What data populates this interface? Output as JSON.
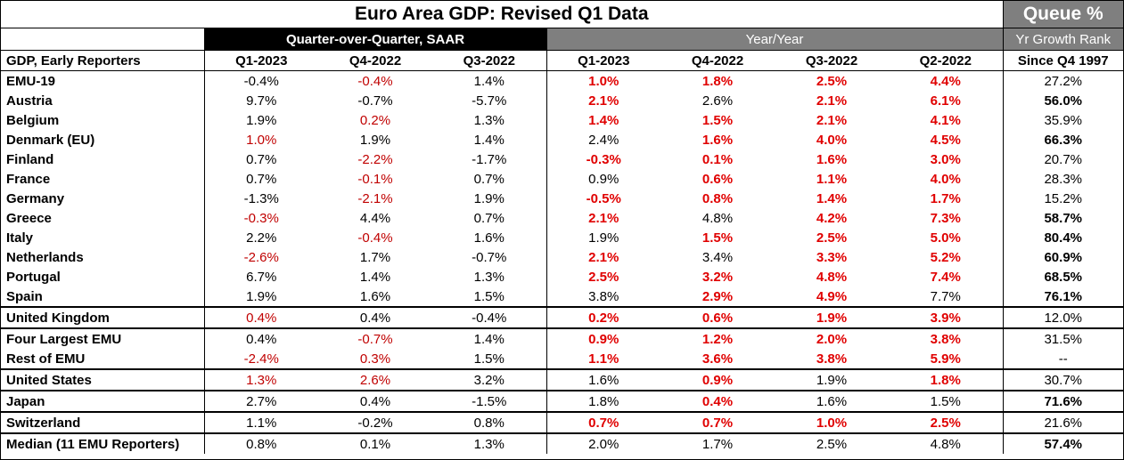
{
  "title": "Euro Area GDP: Revised Q1 Data",
  "queue_label": "Queue %",
  "groups": {
    "qoq": "Quarter-over-Quarter, SAAR",
    "yoy": "Year/Year",
    "rank": "Yr Growth Rank"
  },
  "headers": [
    "GDP, Early Reporters",
    "Q1-2023",
    "Q4-2022",
    "Q3-2022",
    "Q1-2023",
    "Q4-2022",
    "Q3-2022",
    "Q2-2022",
    "Since Q4 1997"
  ],
  "colors": {
    "negative_red": "#c00000",
    "highlight_red": "#e00000",
    "gray": "#7f7f7f"
  },
  "rows": [
    {
      "name": "EMU-19",
      "v": [
        "-0.4%",
        "-0.4%",
        "1.4%",
        "1.0%",
        "1.8%",
        "2.5%",
        "4.4%",
        "27.2%"
      ],
      "s": [
        "n",
        "r",
        "n",
        "rb",
        "rb",
        "rb",
        "rb",
        "n"
      ]
    },
    {
      "name": "Austria",
      "v": [
        "9.7%",
        "-0.7%",
        "-5.7%",
        "2.1%",
        "2.6%",
        "2.1%",
        "6.1%",
        "56.0%"
      ],
      "s": [
        "n",
        "n",
        "n",
        "rb",
        "n",
        "rb",
        "rb",
        "b"
      ]
    },
    {
      "name": "Belgium",
      "v": [
        "1.9%",
        "0.2%",
        "1.3%",
        "1.4%",
        "1.5%",
        "2.1%",
        "4.1%",
        "35.9%"
      ],
      "s": [
        "n",
        "r",
        "n",
        "rb",
        "rb",
        "rb",
        "rb",
        "n"
      ]
    },
    {
      "name": "Denmark (EU)",
      "v": [
        "1.0%",
        "1.9%",
        "1.4%",
        "2.4%",
        "1.6%",
        "4.0%",
        "4.5%",
        "66.3%"
      ],
      "s": [
        "r",
        "n",
        "n",
        "n",
        "rb",
        "rb",
        "rb",
        "b"
      ]
    },
    {
      "name": "Finland",
      "v": [
        "0.7%",
        "-2.2%",
        "-1.7%",
        "-0.3%",
        "0.1%",
        "1.6%",
        "3.0%",
        "20.7%"
      ],
      "s": [
        "n",
        "r",
        "n",
        "rb",
        "rb",
        "rb",
        "rb",
        "n"
      ]
    },
    {
      "name": "France",
      "v": [
        "0.7%",
        "-0.1%",
        "0.7%",
        "0.9%",
        "0.6%",
        "1.1%",
        "4.0%",
        "28.3%"
      ],
      "s": [
        "n",
        "r",
        "n",
        "n",
        "rb",
        "rb",
        "rb",
        "n"
      ]
    },
    {
      "name": "Germany",
      "v": [
        "-1.3%",
        "-2.1%",
        "1.9%",
        "-0.5%",
        "0.8%",
        "1.4%",
        "1.7%",
        "15.2%"
      ],
      "s": [
        "n",
        "r",
        "n",
        "rb",
        "rb",
        "rb",
        "rb",
        "n"
      ]
    },
    {
      "name": "Greece",
      "v": [
        "-0.3%",
        "4.4%",
        "0.7%",
        "2.1%",
        "4.8%",
        "4.2%",
        "7.3%",
        "58.7%"
      ],
      "s": [
        "r",
        "n",
        "n",
        "rb",
        "n",
        "rb",
        "rb",
        "b"
      ]
    },
    {
      "name": "Italy",
      "v": [
        "2.2%",
        "-0.4%",
        "1.6%",
        "1.9%",
        "1.5%",
        "2.5%",
        "5.0%",
        "80.4%"
      ],
      "s": [
        "n",
        "r",
        "n",
        "n",
        "rb",
        "rb",
        "rb",
        "b"
      ]
    },
    {
      "name": "Netherlands",
      "v": [
        "-2.6%",
        "1.7%",
        "-0.7%",
        "2.1%",
        "3.4%",
        "3.3%",
        "5.2%",
        "60.9%"
      ],
      "s": [
        "r",
        "n",
        "n",
        "rb",
        "n",
        "rb",
        "rb",
        "b"
      ]
    },
    {
      "name": "Portugal",
      "v": [
        "6.7%",
        "1.4%",
        "1.3%",
        "2.5%",
        "3.2%",
        "4.8%",
        "7.4%",
        "68.5%"
      ],
      "s": [
        "n",
        "n",
        "n",
        "rb",
        "rb",
        "rb",
        "rb",
        "b"
      ]
    },
    {
      "name": "Spain",
      "v": [
        "1.9%",
        "1.6%",
        "1.5%",
        "3.8%",
        "2.9%",
        "4.9%",
        "7.7%",
        "76.1%"
      ],
      "s": [
        "n",
        "n",
        "n",
        "n",
        "rb",
        "rb",
        "n",
        "b"
      ]
    },
    {
      "name": "United Kingdom",
      "v": [
        "0.4%",
        "0.4%",
        "-0.4%",
        "0.2%",
        "0.6%",
        "1.9%",
        "3.9%",
        "12.0%"
      ],
      "s": [
        "r",
        "n",
        "n",
        "rb",
        "rb",
        "rb",
        "rb",
        "n"
      ],
      "sep": true
    },
    {
      "name": "Four Largest EMU",
      "v": [
        "0.4%",
        "-0.7%",
        "1.4%",
        "0.9%",
        "1.2%",
        "2.0%",
        "3.8%",
        "31.5%"
      ],
      "s": [
        "n",
        "r",
        "n",
        "rb",
        "rb",
        "rb",
        "rb",
        "n"
      ],
      "sep": true
    },
    {
      "name": "Rest of EMU",
      "v": [
        "-2.4%",
        "0.3%",
        "1.5%",
        "1.1%",
        "3.6%",
        "3.8%",
        "5.9%",
        "--"
      ],
      "s": [
        "r",
        "r",
        "n",
        "rb",
        "rb",
        "rb",
        "rb",
        "n"
      ]
    },
    {
      "name": "United States",
      "v": [
        "1.3%",
        "2.6%",
        "3.2%",
        "1.6%",
        "0.9%",
        "1.9%",
        "1.8%",
        "30.7%"
      ],
      "s": [
        "r",
        "r",
        "n",
        "n",
        "rb",
        "n",
        "rb",
        "n"
      ],
      "sep": true
    },
    {
      "name": "Japan",
      "v": [
        "2.7%",
        "0.4%",
        "-1.5%",
        "1.8%",
        "0.4%",
        "1.6%",
        "1.5%",
        "71.6%"
      ],
      "s": [
        "n",
        "n",
        "n",
        "n",
        "rb",
        "n",
        "n",
        "b"
      ],
      "sep": true
    },
    {
      "name": "Switzerland",
      "v": [
        "1.1%",
        "-0.2%",
        "0.8%",
        "0.7%",
        "0.7%",
        "1.0%",
        "2.5%",
        "21.6%"
      ],
      "s": [
        "n",
        "n",
        "n",
        "rb",
        "rb",
        "rb",
        "rb",
        "n"
      ],
      "sep": true
    },
    {
      "name": "Median (11 EMU Reporters)",
      "v": [
        "0.8%",
        "0.1%",
        "1.3%",
        "2.0%",
        "1.7%",
        "2.5%",
        "4.8%",
        "57.4%"
      ],
      "s": [
        "n",
        "n",
        "n",
        "n",
        "n",
        "n",
        "n",
        "b"
      ],
      "sep": true
    }
  ]
}
